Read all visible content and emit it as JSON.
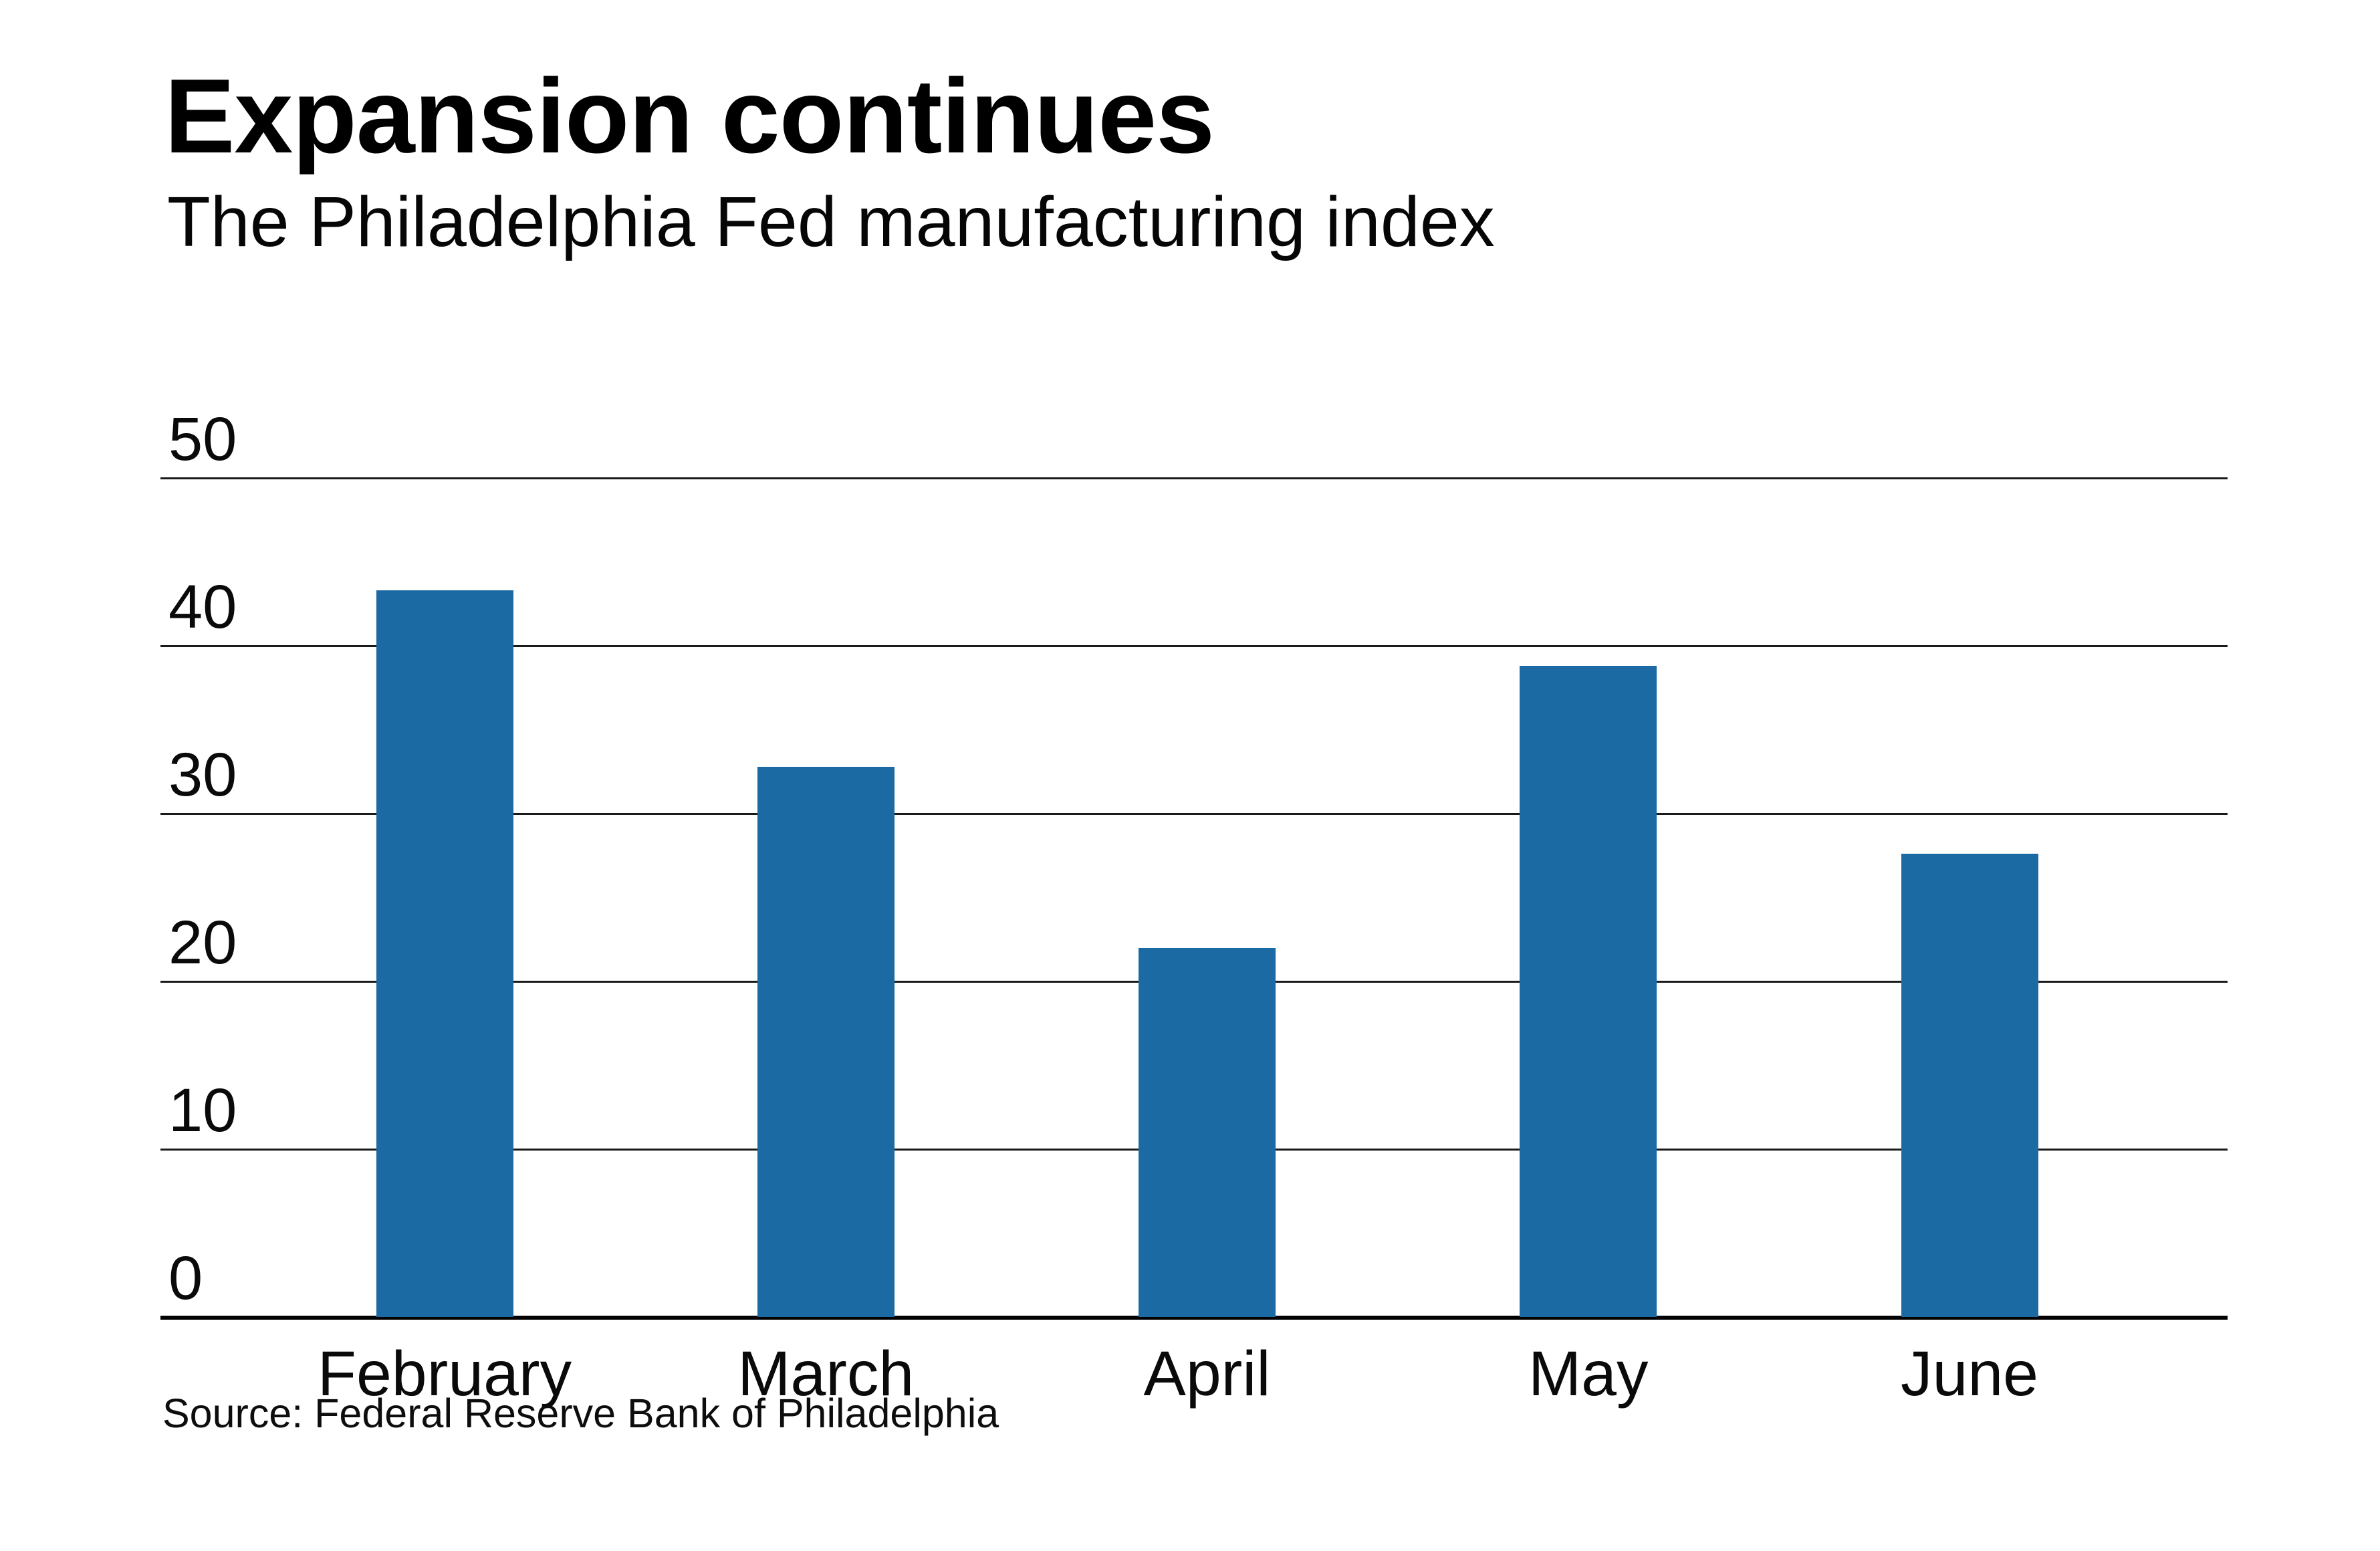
{
  "header": {
    "title": "Expansion continues",
    "subtitle": "The Philadelphia Fed manufacturing index"
  },
  "footer": {
    "source": "Source: Federal Reserve Bank of Philadelphia"
  },
  "colors": {
    "bar": "#1b6aa3",
    "background": "#ffffff",
    "gridline": "#1a1a1a",
    "axis": "#000000",
    "text": "#0a0a0a"
  },
  "chart_data": {
    "type": "bar",
    "title": "Expansion continues",
    "subtitle": "The Philadelphia Fed manufacturing index",
    "categories": [
      "February",
      "March",
      "April",
      "May",
      "June"
    ],
    "values": [
      43.3,
      32.8,
      22.0,
      38.8,
      27.6
    ],
    "xlabel": "",
    "ylabel": "",
    "yticks": [
      0,
      10,
      20,
      30,
      40,
      50
    ],
    "ylim": [
      0,
      50
    ],
    "grid": true,
    "legend": false,
    "legend_position": "none",
    "bar_color": "#1b6aa3",
    "source": "Source: Federal Reserve Bank of Philadelphia"
  }
}
